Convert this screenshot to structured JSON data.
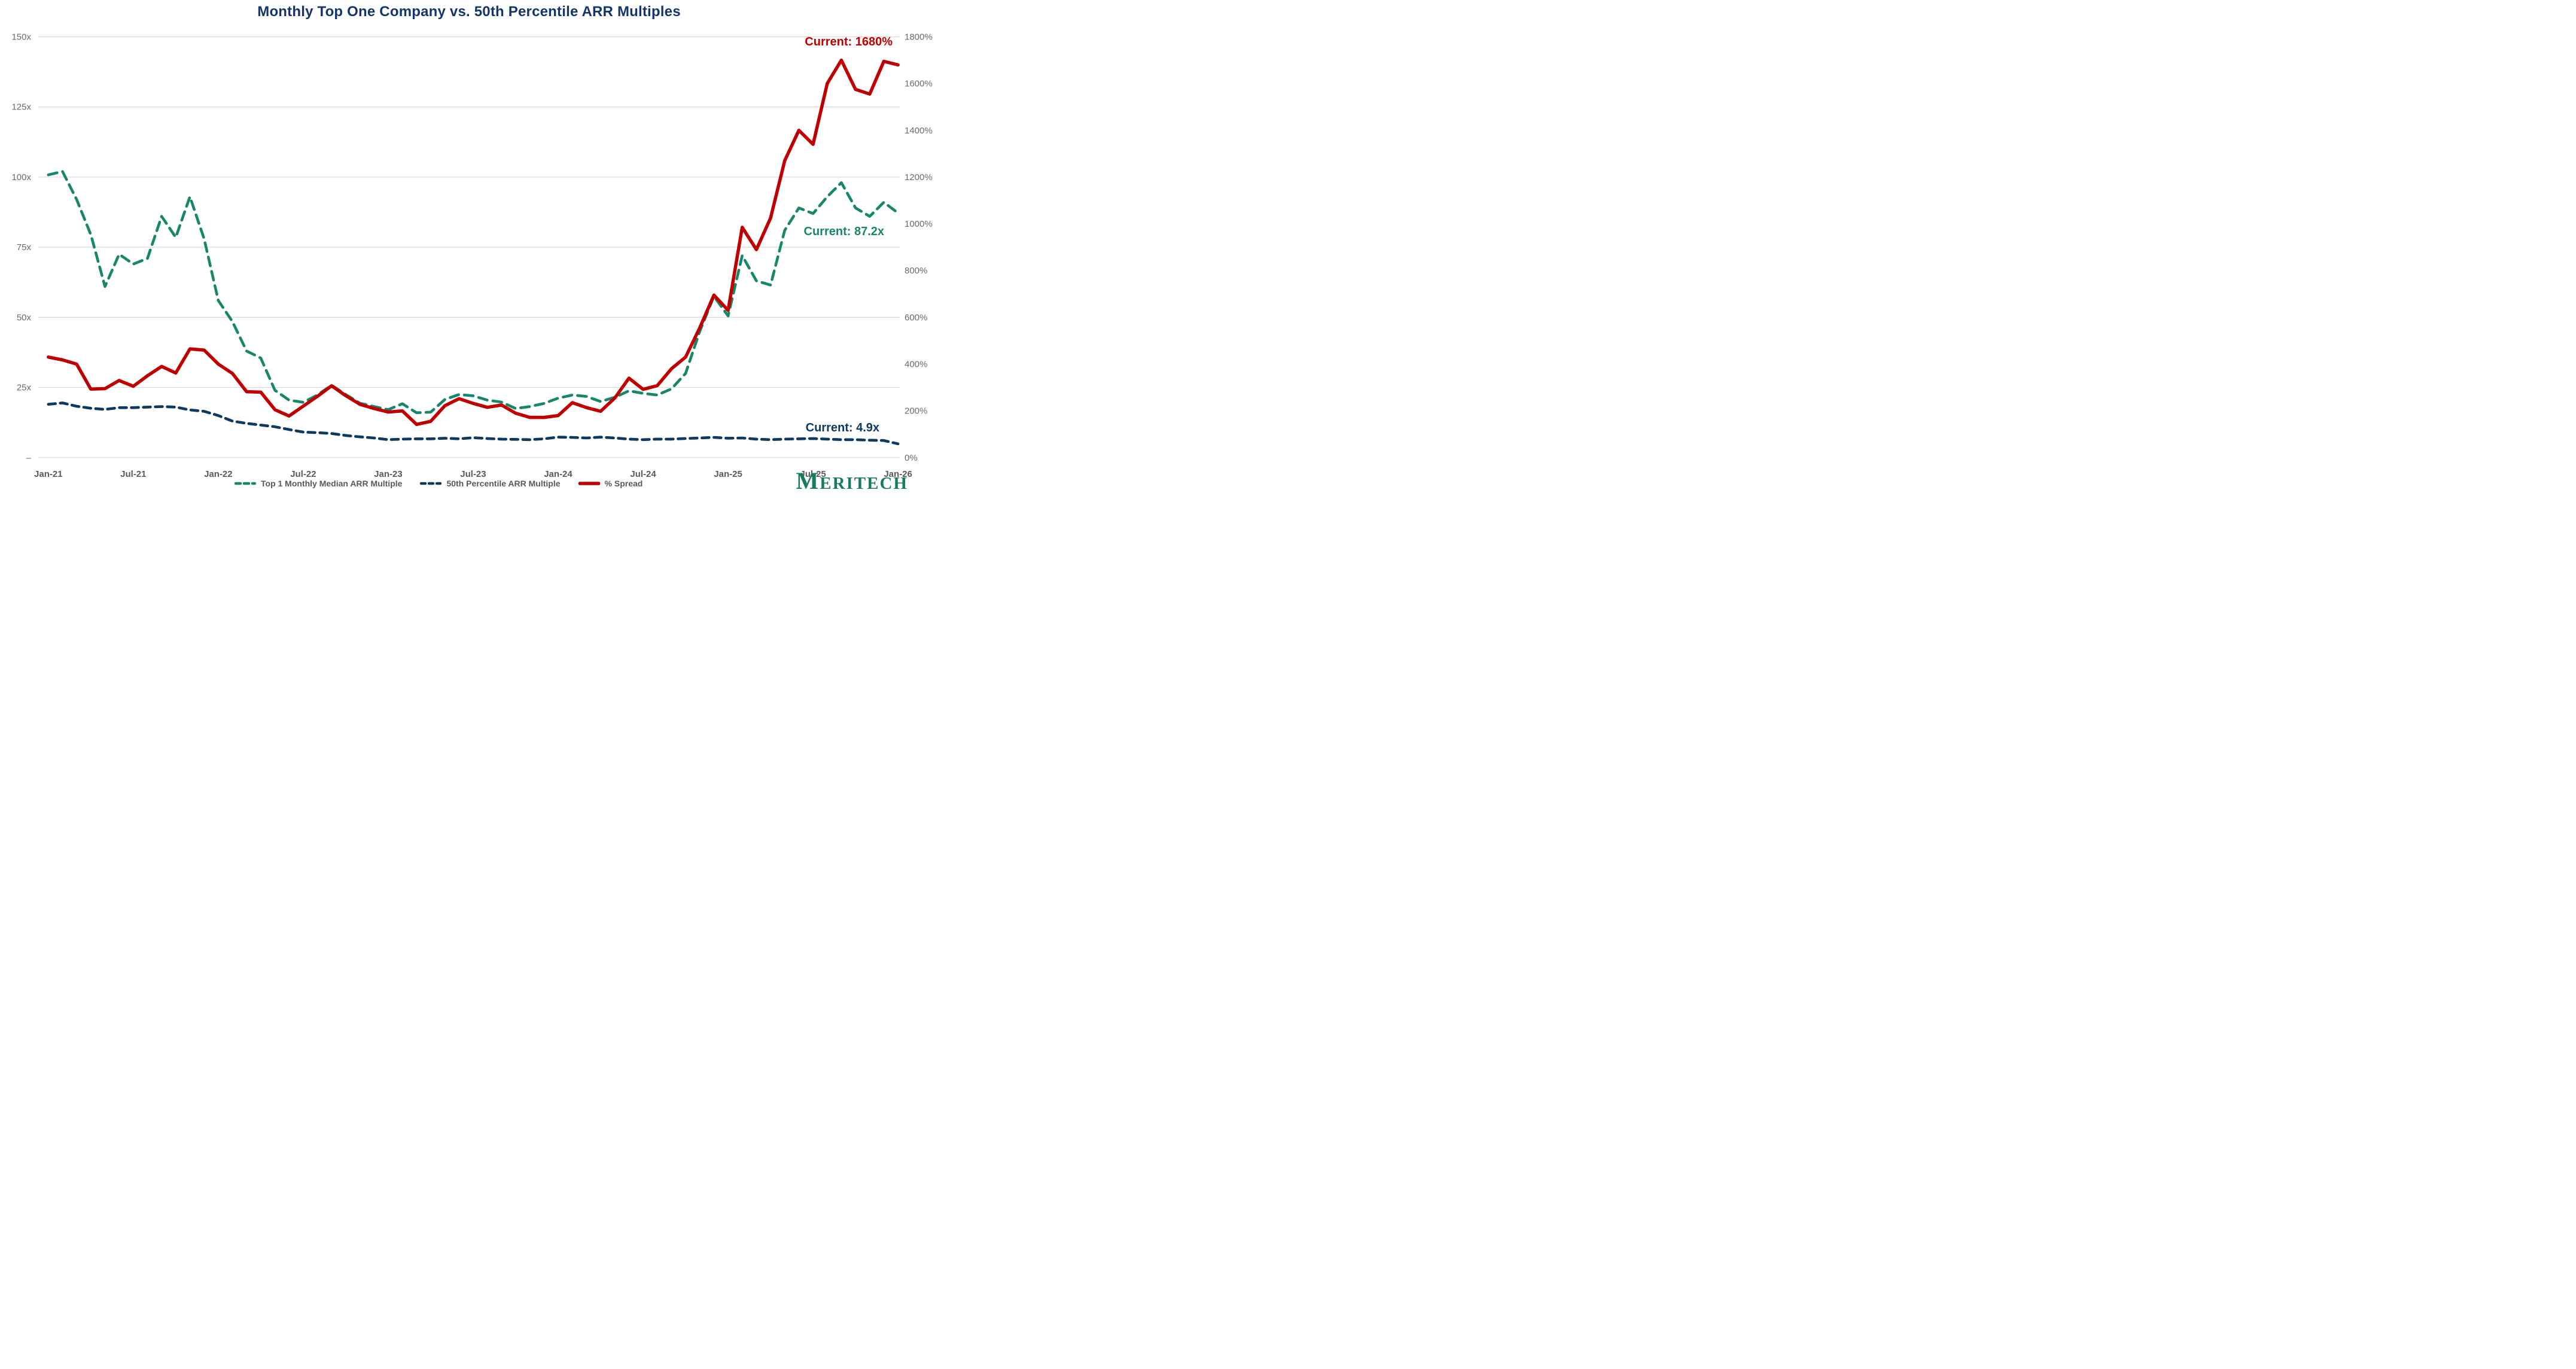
{
  "title": "Monthly Top One Company vs. 50th Percentile ARR Multiples",
  "annotations": {
    "spread": {
      "text": "Current: 1680%",
      "color": "#C00000"
    },
    "top1": {
      "text": "Current: 87.2x",
      "color": "#17866B"
    },
    "median": {
      "text": "Current: 4.9x",
      "color": "#0E3A62"
    }
  },
  "logo": {
    "first": "M",
    "rest": "ERITECH",
    "color": "#187A61"
  },
  "colors": {
    "title": "#14356B",
    "grid": "#D9D9D9",
    "axis_text": "#6a6a6a",
    "x_axis_text": "#595959",
    "green": "#17866B",
    "navy": "#0E3A62",
    "red": "#C00000"
  },
  "chart_data": {
    "type": "line",
    "title": "Monthly Top One Company vs. 50th Percentile ARR Multiples",
    "x_months": [
      "Jan-21",
      "Feb-21",
      "Mar-21",
      "Apr-21",
      "May-21",
      "Jun-21",
      "Jul-21",
      "Aug-21",
      "Sep-21",
      "Oct-21",
      "Nov-21",
      "Dec-21",
      "Jan-22",
      "Feb-22",
      "Mar-22",
      "Apr-22",
      "May-22",
      "Jun-22",
      "Jul-22",
      "Aug-22",
      "Sep-22",
      "Oct-22",
      "Nov-22",
      "Dec-22",
      "Jan-23",
      "Feb-23",
      "Mar-23",
      "Apr-23",
      "May-23",
      "Jun-23",
      "Jul-23",
      "Aug-23",
      "Sep-23",
      "Oct-23",
      "Nov-23",
      "Dec-23",
      "Jan-24",
      "Feb-24",
      "Mar-24",
      "Apr-24",
      "May-24",
      "Jun-24",
      "Jul-24",
      "Aug-24",
      "Sep-24",
      "Oct-24",
      "Nov-24",
      "Dec-24",
      "Jan-25",
      "Feb-25",
      "Mar-25",
      "Apr-25",
      "May-25",
      "Jun-25",
      "Jul-25",
      "Aug-25",
      "Sep-25",
      "Oct-25",
      "Nov-25",
      "Dec-25",
      "Jan-26"
    ],
    "x_tick_labels": [
      "Jan-21",
      "Jul-21",
      "Jan-22",
      "Jul-22",
      "Jan-23",
      "Jul-23",
      "Jan-24",
      "Jul-24",
      "Jan-25",
      "Jul-25",
      "Jan-26"
    ],
    "x_tick_indices": [
      0,
      6,
      12,
      18,
      24,
      30,
      36,
      42,
      48,
      54,
      60
    ],
    "y_left": {
      "min": 0,
      "max": 150,
      "tick_values": [
        150,
        125,
        100,
        75,
        50,
        25,
        0
      ],
      "tick_labels": [
        "150x",
        "125x",
        "100x",
        "75x",
        "50x",
        "25x",
        "–"
      ]
    },
    "y_right": {
      "min": 0,
      "max": 1800,
      "tick_values": [
        1800,
        1600,
        1400,
        1200,
        1000,
        800,
        600,
        400,
        200,
        0
      ],
      "tick_labels": [
        "1800%",
        "1600%",
        "1400%",
        "1200%",
        "1000%",
        "800%",
        "600%",
        "400%",
        "200%",
        "0%"
      ]
    },
    "grid_values": [
      0,
      25,
      50,
      75,
      100,
      125,
      150
    ],
    "legend_position": "bottom",
    "series": [
      {
        "name": "Top 1 Monthly Median ARR Multiple",
        "axis": "left",
        "color": "#17866B",
        "style": "dashed",
        "current_label": "Current: 87.2x",
        "values": [
          100.8,
          102,
          92,
          79.5,
          61,
          72.5,
          69,
          71,
          86,
          78.5,
          93,
          78,
          56,
          48.5,
          38,
          35.5,
          24,
          20.5,
          19.7,
          22.3,
          25.8,
          22.5,
          19.4,
          18.2,
          17.1,
          19.2,
          16,
          16.2,
          20.7,
          22.5,
          22,
          20.5,
          19.8,
          17.5,
          18.2,
          19.3,
          21.2,
          22.3,
          21.8,
          20,
          21.5,
          23.8,
          22.9,
          22.3,
          24.5,
          30,
          45,
          57.5,
          50.5,
          72,
          63,
          61.5,
          81,
          89,
          87,
          93,
          98,
          89,
          86,
          91,
          87.2
        ]
      },
      {
        "name": "50th Percentile ARR Multiple",
        "axis": "left",
        "color": "#0E3A62",
        "style": "dashed",
        "current_label": "Current: 4.9x",
        "values": [
          19,
          19.5,
          18.3,
          17.6,
          17.2,
          17.8,
          17.8,
          18,
          18.2,
          18,
          17,
          16.5,
          15,
          13,
          12.2,
          11.6,
          11,
          10,
          9.1,
          8.9,
          8.6,
          7.9,
          7.4,
          7,
          6.4,
          6.6,
          6.7,
          6.7,
          6.9,
          6.7,
          7.1,
          6.8,
          6.6,
          6.5,
          6.4,
          6.7,
          7.3,
          7.2,
          7,
          7.3,
          7,
          6.6,
          6.4,
          6.6,
          6.6,
          6.8,
          7,
          7.2,
          6.9,
          7,
          6.6,
          6.4,
          6.6,
          6.7,
          6.8,
          6.6,
          6.4,
          6.4,
          6.2,
          6.1,
          4.9
        ]
      },
      {
        "name": "% Spread",
        "axis": "right",
        "color": "#C00000",
        "style": "solid",
        "current_label": "Current: 1680%",
        "values": [
          430,
          418,
          400,
          293,
          295,
          330,
          305,
          350,
          390,
          362,
          465,
          460,
          400,
          360,
          282,
          280,
          205,
          178,
          220,
          262,
          307,
          265,
          228,
          210,
          195,
          200,
          142,
          155,
          222,
          252,
          232,
          215,
          225,
          190,
          172,
          172,
          180,
          235,
          214,
          198,
          255,
          340,
          292,
          308,
          380,
          430,
          555,
          695,
          630,
          985,
          890,
          1025,
          1270,
          1400,
          1340,
          1600,
          1700,
          1575,
          1555,
          1695,
          1680
        ]
      }
    ]
  }
}
